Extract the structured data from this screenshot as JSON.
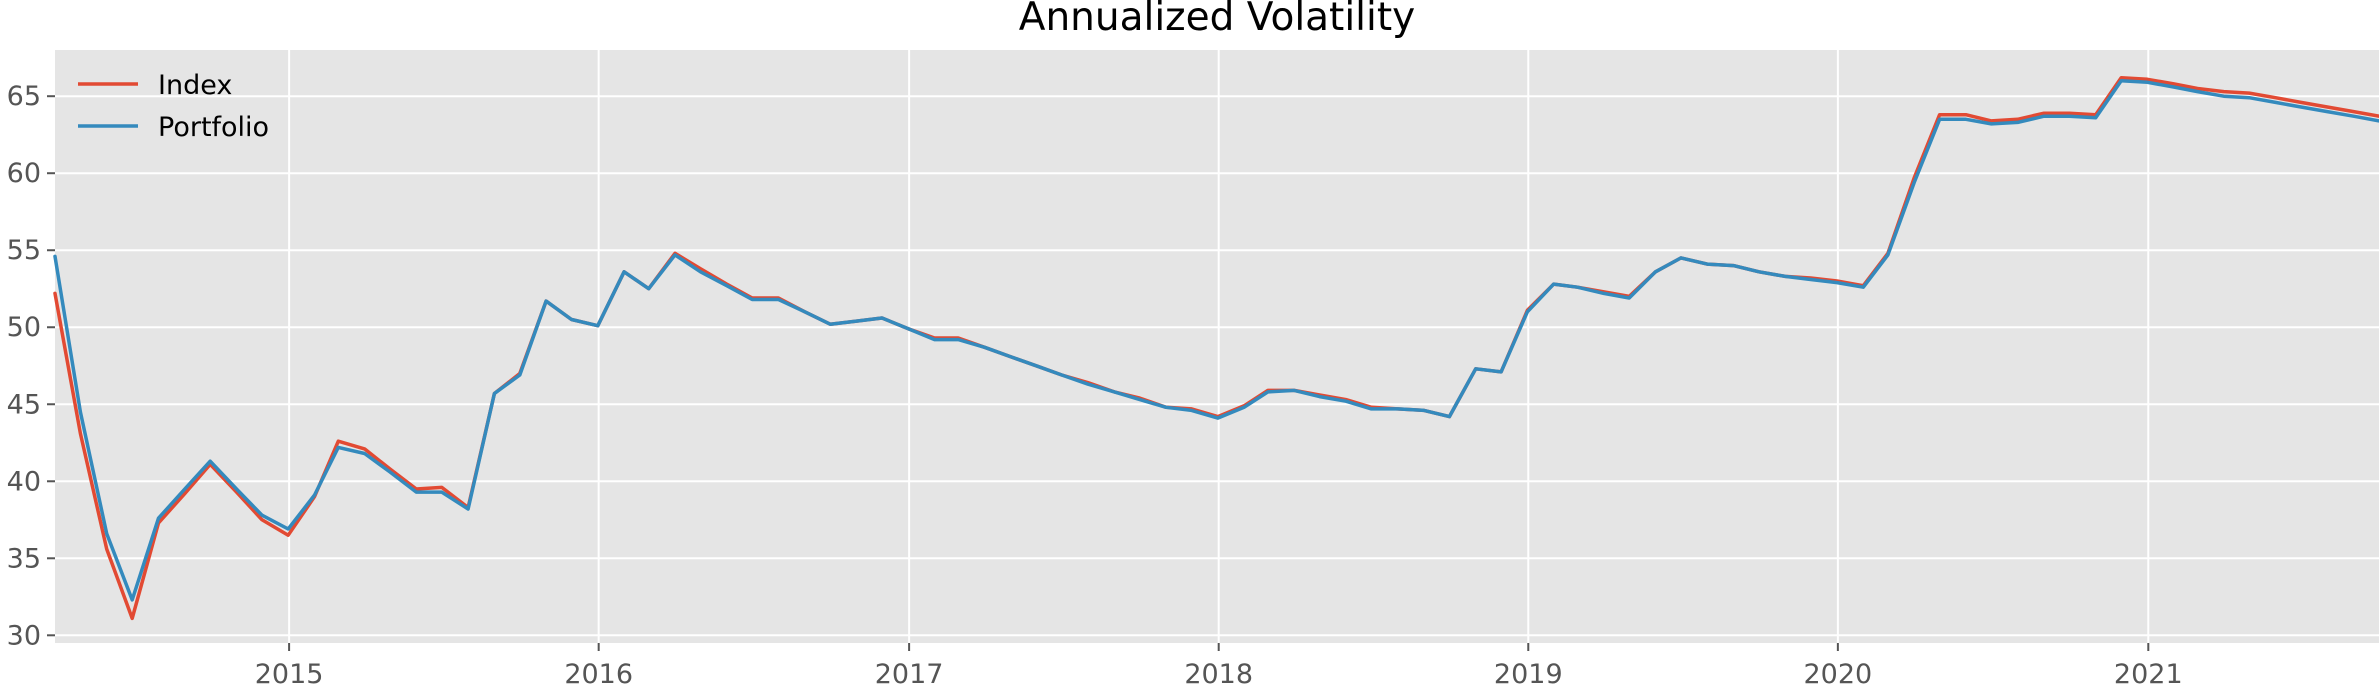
{
  "chart_data": {
    "type": "line",
    "title": "Annualized Volatility",
    "xlabel": "",
    "ylabel": "",
    "x_range": [
      "2014-03-31",
      "2021-09-30"
    ],
    "ylim": [
      29.5,
      68
    ],
    "grid": true,
    "legend_placement": "top-left",
    "x_ticks": [
      "2015",
      "2016",
      "2017",
      "2018",
      "2019",
      "2020",
      "2021"
    ],
    "y_ticks": [
      "30",
      "35",
      "40",
      "45",
      "50",
      "55",
      "60",
      "65"
    ],
    "x": [
      "2014-03-31",
      "2014-04-30",
      "2014-05-31",
      "2014-06-30",
      "2014-07-31",
      "2014-08-31",
      "2014-09-30",
      "2014-10-31",
      "2014-11-30",
      "2014-12-31",
      "2015-01-31",
      "2015-02-28",
      "2015-03-31",
      "2015-04-30",
      "2015-05-31",
      "2015-06-30",
      "2015-07-31",
      "2015-08-31",
      "2015-09-30",
      "2015-10-31",
      "2015-11-30",
      "2015-12-31",
      "2016-01-31",
      "2016-02-29",
      "2016-03-31",
      "2016-04-30",
      "2016-05-31",
      "2016-06-30",
      "2016-07-31",
      "2016-08-31",
      "2016-09-30",
      "2016-10-31",
      "2016-11-30",
      "2016-12-31",
      "2017-01-31",
      "2017-02-28",
      "2017-03-31",
      "2017-04-30",
      "2017-05-31",
      "2017-06-30",
      "2017-07-31",
      "2017-08-31",
      "2017-09-30",
      "2017-10-31",
      "2017-11-30",
      "2017-12-31",
      "2018-01-31",
      "2018-02-28",
      "2018-03-31",
      "2018-04-30",
      "2018-05-31",
      "2018-06-30",
      "2018-07-31",
      "2018-08-31",
      "2018-09-30",
      "2018-10-31",
      "2018-11-30",
      "2018-12-31",
      "2019-01-31",
      "2019-02-28",
      "2019-03-31",
      "2019-04-30",
      "2019-05-31",
      "2019-06-30",
      "2019-07-31",
      "2019-08-31",
      "2019-09-30",
      "2019-10-31",
      "2019-11-30",
      "2019-12-31",
      "2020-01-31",
      "2020-02-29",
      "2020-03-31",
      "2020-04-30",
      "2020-05-31",
      "2020-06-30",
      "2020-07-31",
      "2020-08-31",
      "2020-09-30",
      "2020-10-31",
      "2020-11-30",
      "2020-12-31",
      "2021-01-31",
      "2021-02-28",
      "2021-03-31",
      "2021-04-30",
      "2021-05-31",
      "2021-06-30",
      "2021-07-31",
      "2021-08-31",
      "2021-09-30"
    ],
    "series": [
      {
        "name": "Index",
        "color": "#E24A33",
        "values": [
          52.2,
          43.1,
          35.6,
          31.1,
          37.3,
          39.2,
          41.1,
          39.3,
          37.5,
          36.5,
          39.0,
          42.6,
          42.1,
          40.8,
          39.5,
          39.6,
          38.3,
          45.7,
          47.0,
          51.7,
          50.5,
          50.1,
          53.6,
          52.5,
          54.8,
          53.8,
          52.8,
          51.9,
          51.9,
          51.0,
          50.2,
          50.4,
          50.6,
          49.9,
          49.3,
          49.3,
          48.7,
          48.1,
          47.5,
          46.9,
          46.4,
          45.8,
          45.4,
          44.8,
          44.7,
          44.2,
          44.9,
          45.9,
          45.9,
          45.6,
          45.3,
          44.8,
          44.7,
          44.6,
          44.2,
          47.3,
          47.1,
          51.1,
          52.8,
          52.6,
          52.3,
          52.0,
          53.6,
          54.5,
          54.1,
          54.0,
          53.6,
          53.3,
          53.2,
          53.0,
          52.7,
          54.8,
          59.7,
          63.8,
          63.8,
          63.4,
          63.5,
          63.9,
          63.9,
          63.8,
          66.2,
          66.1,
          65.8,
          65.5,
          65.3,
          65.2,
          64.9,
          64.6,
          64.3,
          64.0,
          63.7
        ]
      },
      {
        "name": "Portfolio",
        "color": "#348ABD",
        "values": [
          54.6,
          44.5,
          36.6,
          32.3,
          37.6,
          39.5,
          41.3,
          39.5,
          37.8,
          36.9,
          39.1,
          42.2,
          41.8,
          40.6,
          39.3,
          39.3,
          38.2,
          45.7,
          46.9,
          51.7,
          50.5,
          50.1,
          53.6,
          52.5,
          54.7,
          53.6,
          52.7,
          51.8,
          51.8,
          51.0,
          50.2,
          50.4,
          50.6,
          49.9,
          49.2,
          49.2,
          48.7,
          48.1,
          47.5,
          46.9,
          46.3,
          45.8,
          45.3,
          44.8,
          44.6,
          44.1,
          44.8,
          45.8,
          45.9,
          45.5,
          45.2,
          44.7,
          44.7,
          44.6,
          44.2,
          47.3,
          47.1,
          51.0,
          52.8,
          52.6,
          52.2,
          51.9,
          53.6,
          54.5,
          54.1,
          54.0,
          53.6,
          53.3,
          53.1,
          52.9,
          52.6,
          54.7,
          59.4,
          63.5,
          63.5,
          63.2,
          63.3,
          63.7,
          63.7,
          63.6,
          66.0,
          65.9,
          65.6,
          65.3,
          65.0,
          64.9,
          64.6,
          64.3,
          64.0,
          63.7,
          63.4
        ]
      }
    ]
  }
}
